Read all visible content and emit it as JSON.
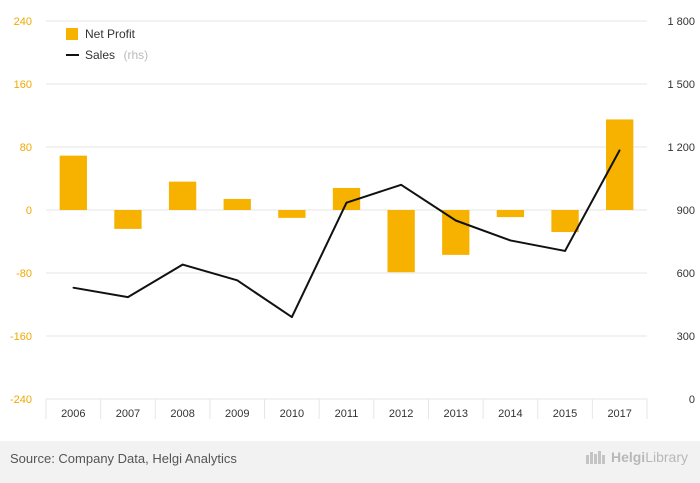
{
  "chart_data": {
    "type": "bar+line",
    "categories": [
      "2006",
      "2007",
      "2008",
      "2009",
      "2010",
      "2011",
      "2012",
      "2013",
      "2014",
      "2015",
      "2017"
    ],
    "series": [
      {
        "name": "Net Profit",
        "type": "bar",
        "axis": "left",
        "color": "#f7b200",
        "values": [
          69,
          -24,
          36,
          14,
          -10,
          28,
          -79,
          -57,
          -9,
          -28,
          115
        ]
      },
      {
        "name": "Sales",
        "name_note": "(rhs)",
        "type": "line",
        "axis": "right",
        "color": "#111111",
        "values": [
          530,
          485,
          640,
          565,
          390,
          935,
          1020,
          850,
          755,
          705,
          1185
        ]
      }
    ],
    "left_axis": {
      "min": -240,
      "max": 240,
      "ticks": [
        "240",
        "160",
        "80",
        "0",
        "-80",
        "-160",
        "-240"
      ]
    },
    "right_axis": {
      "min": 0,
      "max": 1800,
      "ticks": [
        "1 800",
        "1 500",
        "1 200",
        "900",
        "600",
        "300",
        "0"
      ]
    },
    "grid": true,
    "legend_position": "top-left"
  },
  "footer": {
    "source": "Source: Company Data, Helgi Analytics",
    "logo_a": "Helgi",
    "logo_b": "Library"
  }
}
